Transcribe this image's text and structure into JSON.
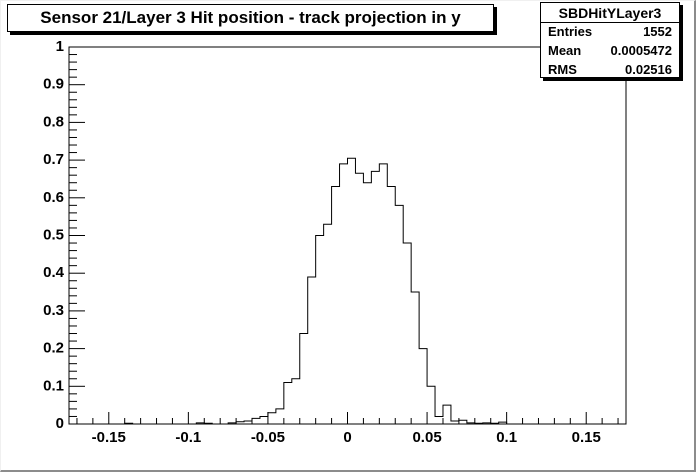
{
  "title": "Sensor 21/Layer 3 Hit position - track projection in y",
  "stats": {
    "name": "SBDHitYLayer3",
    "rows": [
      {
        "label": "Entries",
        "value": "1552"
      },
      {
        "label": "Mean",
        "value": "0.0005472"
      },
      {
        "label": "RMS",
        "value": "0.02516"
      }
    ]
  },
  "chart_data": {
    "type": "histogram",
    "title": "Sensor 21/Layer 3 Hit position - track projection in y",
    "xlabel": "",
    "ylabel": "",
    "xlim": [
      -0.175,
      0.175
    ],
    "ylim": [
      0,
      1
    ],
    "bin_width": 0.005,
    "x_ticks": [
      -0.15,
      -0.1,
      -0.05,
      0,
      0.05,
      0.1,
      0.15
    ],
    "x_tick_labels": [
      "-0.15",
      "-0.1",
      "-0.05",
      "0",
      "0.05",
      "0.1",
      "0.15"
    ],
    "y_ticks": [
      0,
      0.1,
      0.2,
      0.3,
      0.4,
      0.5,
      0.6,
      0.7,
      0.8,
      0.9,
      1
    ],
    "y_tick_labels": [
      "0",
      "0.1",
      "0.2",
      "0.3",
      "0.4",
      "0.5",
      "0.6",
      "0.7",
      "0.8",
      "0.9",
      "1"
    ],
    "bin_edges_low": [
      -0.175,
      -0.17,
      -0.165,
      -0.16,
      -0.155,
      -0.15,
      -0.145,
      -0.14,
      -0.135,
      -0.13,
      -0.125,
      -0.12,
      -0.115,
      -0.11,
      -0.105,
      -0.1,
      -0.095,
      -0.09,
      -0.085,
      -0.08,
      -0.075,
      -0.07,
      -0.065,
      -0.06,
      -0.055,
      -0.05,
      -0.045,
      -0.04,
      -0.035,
      -0.03,
      -0.025,
      -0.02,
      -0.015,
      -0.01,
      -0.005,
      0,
      0.005,
      0.01,
      0.015,
      0.02,
      0.025,
      0.03,
      0.035,
      0.04,
      0.045,
      0.05,
      0.055,
      0.06,
      0.065,
      0.07,
      0.075,
      0.08,
      0.085,
      0.09,
      0.095,
      0.1,
      0.105,
      0.11,
      0.115,
      0.12,
      0.125,
      0.13,
      0.135,
      0.14,
      0.145,
      0.15,
      0.155,
      0.16,
      0.165,
      0.17
    ],
    "values": [
      0,
      0,
      0,
      0,
      0,
      0,
      0,
      0.002,
      0,
      0,
      0,
      0,
      0,
      0,
      0,
      0,
      0.003,
      0.002,
      0,
      0,
      0.003,
      0.006,
      0.008,
      0.015,
      0.02,
      0.03,
      0.04,
      0.11,
      0.12,
      0.24,
      0.39,
      0.5,
      0.53,
      0.63,
      0.69,
      0.705,
      0.665,
      0.64,
      0.67,
      0.69,
      0.63,
      0.58,
      0.48,
      0.35,
      0.2,
      0.1,
      0.02,
      0.05,
      0.008,
      0.01,
      0.003,
      0.002,
      0.003,
      0.002,
      0.005,
      0,
      0,
      0,
      0,
      0,
      0,
      0,
      0,
      0,
      0,
      0,
      0,
      0,
      0,
      0
    ]
  }
}
